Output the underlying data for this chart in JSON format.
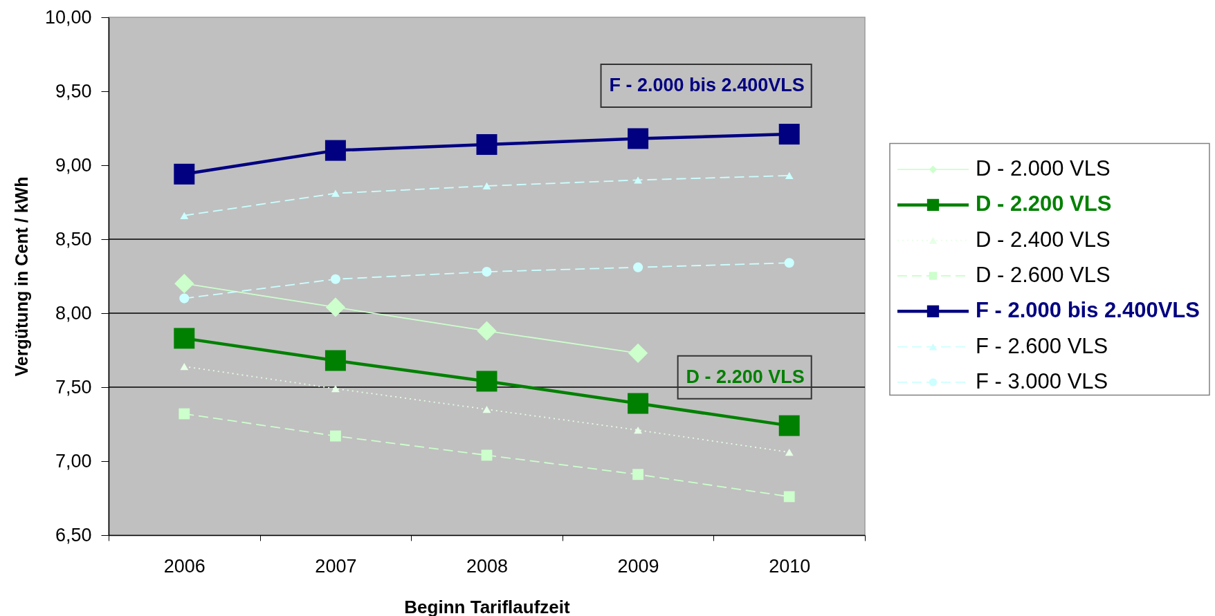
{
  "chart_data": {
    "type": "line",
    "xlabel": "Beginn Tariflaufzeit",
    "ylabel": "Vergütung in Cent / kWh",
    "categories": [
      "2006",
      "2007",
      "2008",
      "2009",
      "2010"
    ],
    "ylim": [
      6.5,
      10
    ],
    "yticks": [
      {
        "value": 6.5,
        "label": "6,50"
      },
      {
        "value": 7,
        "label": "7,00"
      },
      {
        "value": 7.5,
        "label": "7,50"
      },
      {
        "value": 8,
        "label": "8,00"
      },
      {
        "value": 8.5,
        "label": "8,50"
      },
      {
        "value": 9,
        "label": "9,00"
      },
      {
        "value": 9.5,
        "label": "9,50"
      },
      {
        "value": 10,
        "label": "10,00"
      }
    ],
    "legend": "right",
    "ref_lines": [
      {
        "axis": "y",
        "value": 7.5,
        "color": "#000000"
      },
      {
        "axis": "y",
        "value": 8,
        "color": "#000000"
      },
      {
        "axis": "y",
        "value": 8.5,
        "color": "#000000"
      }
    ],
    "annotations": [
      "F - 2.000 bis 2.400VLS",
      "D - 2.200 VLS"
    ],
    "series": [
      {
        "name": "D - 2.000 VLS",
        "color": "#ccffcc",
        "marker": "diamond",
        "line_style": "solid",
        "values": [
          8.2,
          8.04,
          7.88,
          7.73,
          null
        ]
      },
      {
        "name": "D - 2.200 VLS",
        "color": "#008000",
        "marker": "square",
        "line_style": "solid",
        "values": [
          7.83,
          7.68,
          7.54,
          7.39,
          7.24
        ]
      },
      {
        "name": "D - 2.400 VLS",
        "color": "#e6ffe6",
        "marker": "triangle",
        "line_style": "dotted",
        "values": [
          7.64,
          7.49,
          7.35,
          7.21,
          7.06
        ]
      },
      {
        "name": "D - 2.600 VLS",
        "color": "#ccffcc",
        "marker": "square",
        "line_style": "dashed",
        "values": [
          7.32,
          7.17,
          7.04,
          6.91,
          6.76
        ]
      },
      {
        "name": "F - 2.000 bis 2.400VLS",
        "color": "#000080",
        "marker": "square",
        "line_style": "solid",
        "values": [
          8.94,
          9.1,
          9.14,
          9.18,
          9.21
        ]
      },
      {
        "name": "F - 2.600 VLS",
        "color": "#ccffff",
        "marker": "triangle",
        "line_style": "dashed",
        "values": [
          8.66,
          8.81,
          8.86,
          8.9,
          8.93
        ]
      },
      {
        "name": "F - 3.000 VLS",
        "color": "#ccffff",
        "marker": "circle",
        "line_style": "dashed",
        "values": [
          8.1,
          8.23,
          8.28,
          8.31,
          8.34
        ]
      }
    ]
  }
}
